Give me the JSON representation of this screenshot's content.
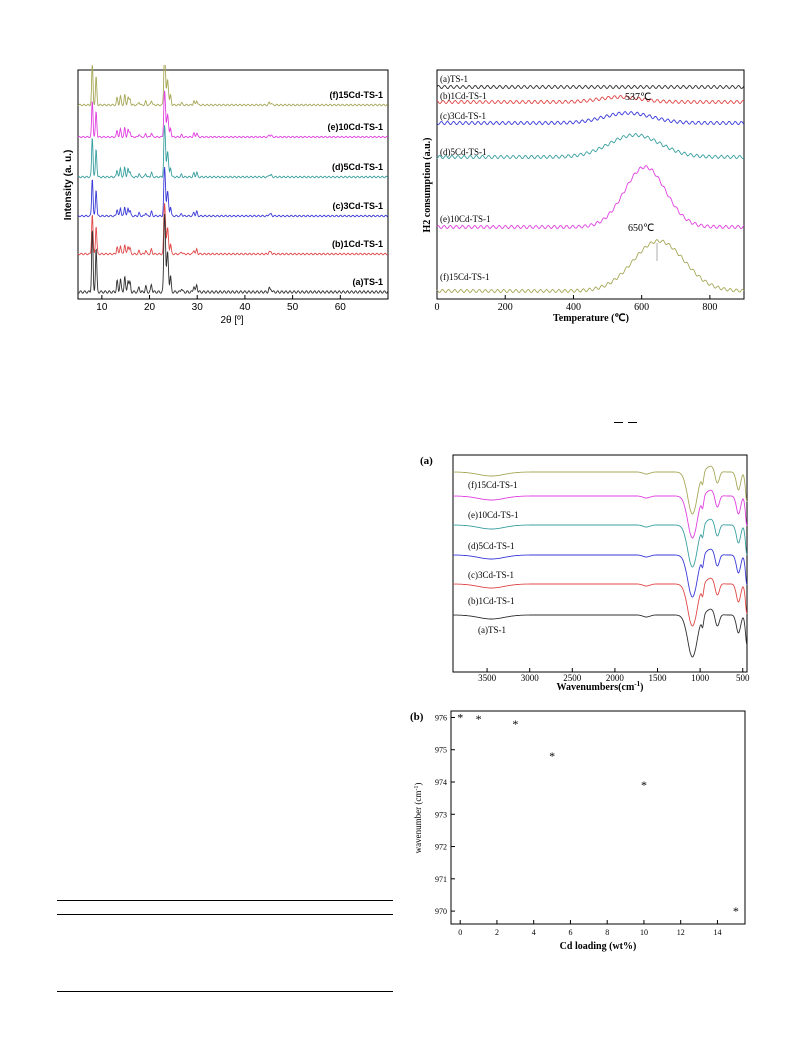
{
  "xrd": {
    "xlabel": "2θ [º]",
    "ylabel": "Intensity (a. u.)",
    "xticks": [
      "10",
      "20",
      "30",
      "40",
      "50",
      "60"
    ],
    "labels": [
      "(f)15Cd-TS-1",
      "(e)10Cd-TS-1",
      "(d)5Cd-TS-1",
      "(c)3Cd-TS-1",
      "(b)1Cd-TS-1",
      "(a)TS-1"
    ],
    "colors": [
      "#a8a85a",
      "#e040e0",
      "#3aa0a0",
      "#3a3ad8",
      "#e04848",
      "#303030"
    ]
  },
  "tpr": {
    "xlabel": "Temperature (℃)",
    "ylabel": "H2 consumption (a.u.)",
    "xticks": [
      "0",
      "200",
      "400",
      "600",
      "800"
    ],
    "labels": [
      "(a)TS-1",
      "(b)1Cd-TS-1",
      "(c)3Cd-TS-1",
      "(d)5Cd-TS-1",
      "(e)10Cd-TS-1",
      "(f)15Cd-TS-1"
    ],
    "annotations": [
      "537℃",
      "650℃"
    ],
    "colors": [
      "#303030",
      "#e04848",
      "#3a3ad8",
      "#3aa0a0",
      "#e040e0",
      "#a8a85a"
    ]
  },
  "ftir": {
    "panel": "(a)",
    "xlabel": "Wavenumbers(cm",
    "xlabel_sup": "-1",
    "xlabel_end": ")",
    "xticks": [
      "3500",
      "3000",
      "2500",
      "2000",
      "1500",
      "1000",
      "500"
    ],
    "labels": [
      "(f)15Cd-TS-1",
      "(e)10Cd-TS-1",
      "(d)5Cd-TS-1",
      "(c)3Cd-TS-1",
      "(b)1Cd-TS-1",
      "(a)TS-1"
    ],
    "colors": [
      "#a8a85a",
      "#e040e0",
      "#3aa0a0",
      "#3a3ad8",
      "#e04848",
      "#303030"
    ]
  },
  "wavenumber": {
    "panel": "(b)",
    "xlabel": "Cd loading (wt%)",
    "ylabel": "wavenumber (cm",
    "ylabel_sup": "-1",
    "ylabel_end": ")",
    "xticks": [
      "0",
      "2",
      "4",
      "6",
      "8",
      "10",
      "12",
      "14"
    ],
    "yticks": [
      "970",
      "971",
      "972",
      "973",
      "974",
      "975",
      "976"
    ],
    "marker": "*"
  },
  "chart_data": [
    {
      "type": "line",
      "xlabel": "2θ [º]",
      "ylabel": "Intensity (a. u.)",
      "xlim": [
        5,
        70
      ],
      "series": [
        {
          "name": "(a)TS-1"
        },
        {
          "name": "(b)1Cd-TS-1"
        },
        {
          "name": "(c)3Cd-TS-1"
        },
        {
          "name": "(d)5Cd-TS-1"
        },
        {
          "name": "(e)10Cd-TS-1"
        },
        {
          "name": "(f)15Cd-TS-1"
        }
      ],
      "peaks_2theta": [
        7.9,
        8.8,
        13.2,
        13.9,
        14.8,
        15.5,
        15.9,
        17.8,
        19.2,
        20.4,
        23.1,
        23.3,
        23.7,
        23.9,
        24.4,
        26.7,
        29.3,
        29.9,
        45.1,
        45.5
      ]
    },
    {
      "type": "line",
      "xlabel": "Temperature (℃)",
      "ylabel": "H2 consumption (a.u.)",
      "xlim": [
        0,
        900
      ],
      "series": [
        {
          "name": "(a)TS-1",
          "peak_temp": null
        },
        {
          "name": "(b)1Cd-TS-1",
          "peak_temp": 537
        },
        {
          "name": "(c)3Cd-TS-1",
          "peak_temp": 560
        },
        {
          "name": "(d)5Cd-TS-1",
          "peak_temp": 580
        },
        {
          "name": "(e)10Cd-TS-1",
          "peak_temp": 610
        },
        {
          "name": "(f)15Cd-TS-1",
          "peak_temp": 650
        }
      ]
    },
    {
      "type": "line",
      "xlabel": "Wavenumbers(cm-1)",
      "xlim": [
        3900,
        450
      ],
      "series": [
        {
          "name": "(a)TS-1"
        },
        {
          "name": "(b)1Cd-TS-1"
        },
        {
          "name": "(c)3Cd-TS-1"
        },
        {
          "name": "(d)5Cd-TS-1"
        },
        {
          "name": "(e)10Cd-TS-1"
        },
        {
          "name": "(f)15Cd-TS-1"
        }
      ],
      "bands_cm1": [
        3450,
        1630,
        1090,
        970,
        800,
        550,
        450
      ]
    },
    {
      "type": "scatter",
      "xlabel": "Cd loading (wt%)",
      "ylabel": "wavenumber (cm-1)",
      "xlim": [
        -0.5,
        15.5
      ],
      "ylim": [
        969.6,
        976.2
      ],
      "x": [
        0,
        1,
        3,
        5,
        10,
        15
      ],
      "y": [
        976.0,
        975.95,
        975.8,
        974.8,
        973.9,
        970.0
      ]
    }
  ]
}
